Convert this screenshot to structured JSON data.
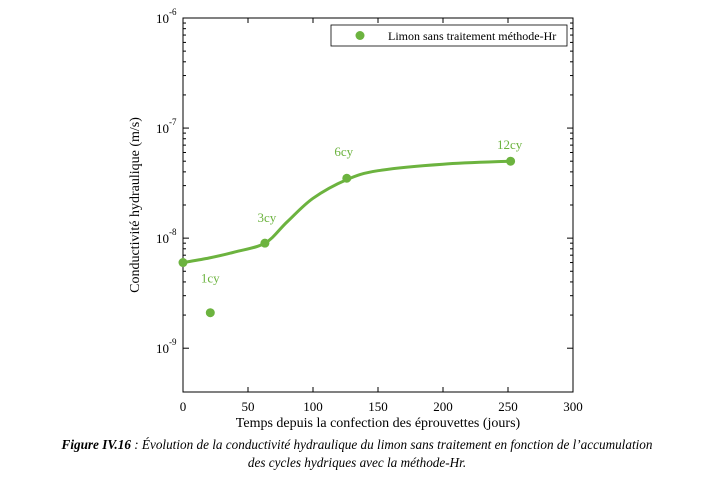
{
  "chart_data": {
    "type": "scatter",
    "xlabel": "Temps depuis la confection des éprouvettes (jours)",
    "ylabel": "Conductivité hydraulique (m/s)",
    "xlim": [
      0,
      300
    ],
    "ylim": [
      4e-10,
      1e-06
    ],
    "yscale": "log",
    "x_ticks": [
      0,
      50,
      100,
      150,
      200,
      250,
      300
    ],
    "y_ticks": [
      {
        "value": 1e-09,
        "base": "10",
        "exp": "-9"
      },
      {
        "value": 1e-08,
        "base": "10",
        "exp": "-8"
      },
      {
        "value": 1e-07,
        "base": "10",
        "exp": "-7"
      },
      {
        "value": 1e-06,
        "base": "10",
        "exp": "-6"
      }
    ],
    "grid": false,
    "legend_position": "top-right",
    "series": [
      {
        "name": "Limon sans traitement méthode-Hr",
        "color": "#6cb33f",
        "x": [
          0,
          21,
          63,
          126,
          252
        ],
        "y": [
          6e-09,
          2.1e-09,
          9e-09,
          3.5e-08,
          5e-08
        ],
        "labels": [
          "",
          "1cy",
          "3cy",
          "6cy",
          "12cy"
        ]
      }
    ],
    "trend_curve": {
      "color": "#6cb33f",
      "x": [
        0,
        20,
        40,
        63,
        80,
        100,
        126,
        150,
        200,
        252
      ],
      "y": [
        6e-09,
        6.6e-09,
        7.5e-09,
        9e-09,
        1.4e-08,
        2.3e-08,
        3.4e-08,
        4.1e-08,
        4.7e-08,
        5e-08
      ]
    }
  },
  "caption": {
    "lead": "Figure IV.16",
    "text": " : Évolution de la conductivité hydraulique du limon sans traitement en fonction de l’accumulation",
    "line2": "des cycles hydriques avec la méthode-Hr."
  }
}
